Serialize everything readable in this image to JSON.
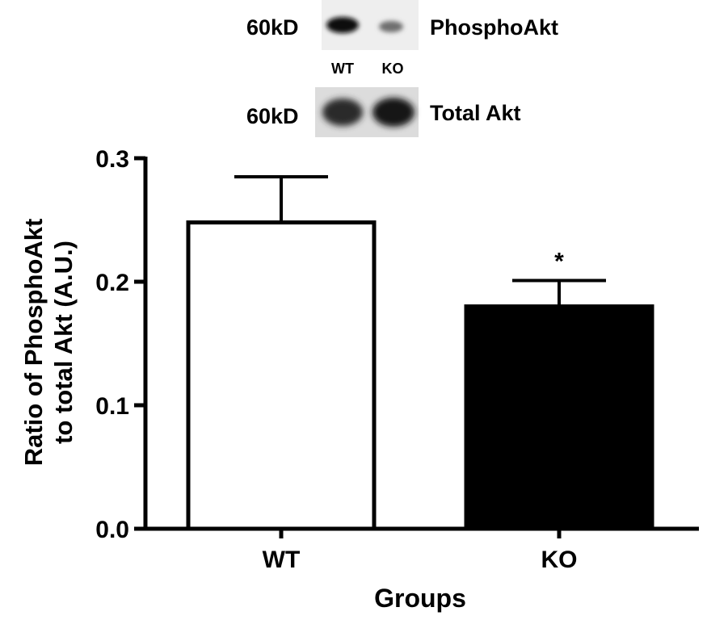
{
  "blot": {
    "rows": [
      {
        "size_label": "60kD",
        "protein": "PhosphoAkt"
      },
      {
        "size_label": "60kD",
        "protein": "Total Akt"
      }
    ],
    "lane_labels": [
      "WT",
      "KO"
    ]
  },
  "chart_data": {
    "type": "bar",
    "categories": [
      "WT",
      "KO"
    ],
    "values": [
      0.248,
      0.18
    ],
    "error_upper": [
      0.285,
      0.201
    ],
    "bar_colors": [
      "#ffffff",
      "#000000"
    ],
    "significance": [
      "",
      "*"
    ],
    "xlabel": "Groups",
    "ylabel_lines": [
      "Ratio of PhosphoAkt",
      "to total Akt (A.U.)"
    ],
    "ylim": [
      0,
      0.3
    ],
    "yticks": [
      0.0,
      0.1,
      0.2,
      0.3
    ],
    "ytick_labels": [
      "0.0",
      "0.1",
      "0.2",
      "0.3"
    ],
    "grid": false
  }
}
